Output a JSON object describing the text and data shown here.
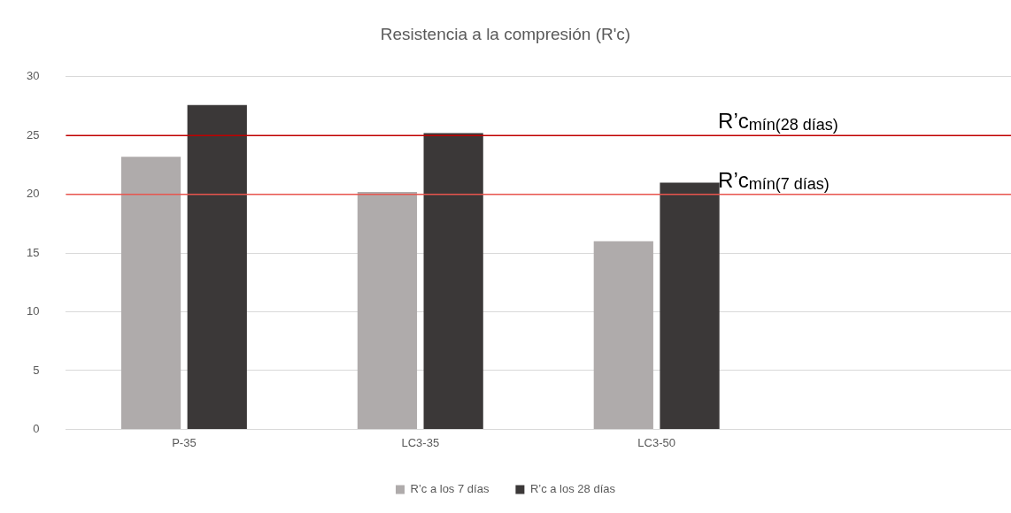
{
  "chart_data": {
    "type": "bar",
    "title": "Resistencia a la compresión (R'c)",
    "categories": [
      "P-35",
      "LC3-35",
      "LC3-50",
      null
    ],
    "series": [
      {
        "name": "R’c a los 7 días",
        "color": "#afabab",
        "values": [
          23.2,
          20.2,
          16,
          null
        ]
      },
      {
        "name": "R’c a los 28 días",
        "color": "#3b3838",
        "values": [
          27.6,
          25.2,
          21,
          null
        ]
      }
    ],
    "ylim": [
      0,
      30
    ],
    "yticks": [
      0,
      5,
      10,
      15,
      20,
      25,
      30
    ],
    "grid": "y",
    "legend": "bottom",
    "ref_lines": [
      {
        "axis": "y",
        "value": 25,
        "label": "R’c$_{mín(28 días)}$",
        "color": "#c00000"
      },
      {
        "axis": "y",
        "value": 20,
        "label": "R’c$_{mín(7 días)}$",
        "color": "#e8554e"
      }
    ]
  }
}
